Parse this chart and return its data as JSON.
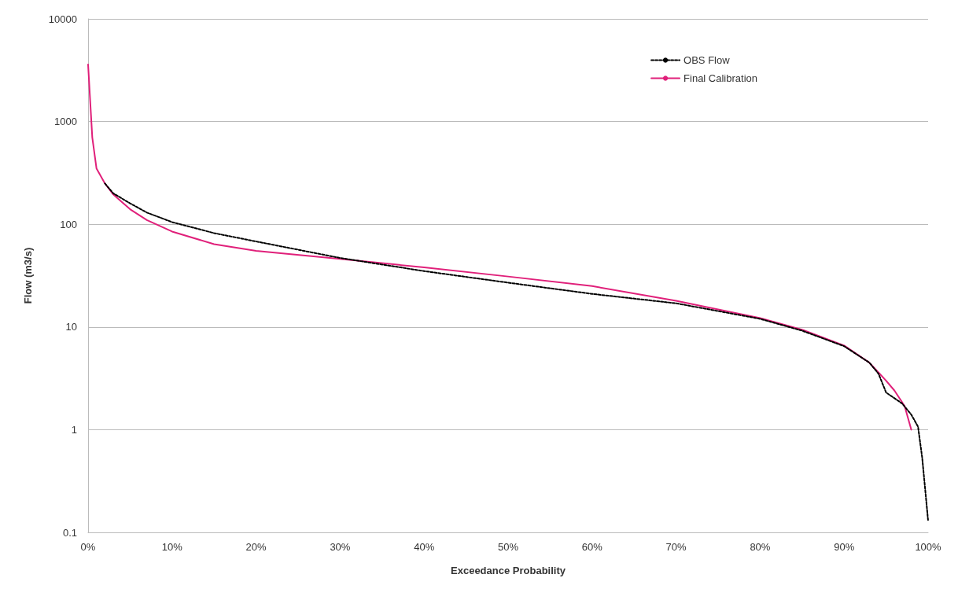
{
  "chart_data": {
    "type": "line",
    "xlabel": "Exceedance Probability",
    "ylabel": "Flow (m3/s)",
    "log": "y",
    "grid": "y",
    "legend": "top right",
    "marker": "none",
    "xlim": [
      0,
      100
    ],
    "xticks": [
      {
        "value": 0,
        "label": "0%"
      },
      {
        "value": 10,
        "label": "10%"
      },
      {
        "value": 20,
        "label": "20%"
      },
      {
        "value": 30,
        "label": "30%"
      },
      {
        "value": 40,
        "label": "40%"
      },
      {
        "value": 50,
        "label": "50%"
      },
      {
        "value": 60,
        "label": "60%"
      },
      {
        "value": 70,
        "label": "70%"
      },
      {
        "value": 80,
        "label": "80%"
      },
      {
        "value": 90,
        "label": "90%"
      },
      {
        "value": 100,
        "label": "100%"
      }
    ],
    "ylim": [
      0.1,
      10000
    ],
    "yticks": [
      0.1,
      1,
      10,
      100,
      1000,
      10000
    ],
    "series": [
      {
        "name": "OBS Flow",
        "color": "#000000",
        "line_style": "dashed",
        "x": [
          2,
          3,
          5,
          7,
          10,
          15,
          20,
          30,
          40,
          50,
          60,
          70,
          80,
          85,
          90,
          93,
          94.1,
          95,
          96.9,
          98,
          98.8,
          99.3,
          100
        ],
        "values": [
          250,
          200,
          160,
          130,
          105,
          82,
          68,
          47,
          35,
          27,
          21,
          17,
          12,
          9.2,
          6.5,
          4.5,
          3.5,
          2.3,
          1.8,
          1.4,
          1.07,
          0.53,
          0.13
        ]
      },
      {
        "name": "Final Calibration",
        "color": "#e0207a",
        "line_style": "solid",
        "x": [
          0,
          0.5,
          1,
          2,
          3,
          5,
          7,
          10,
          15,
          20,
          30,
          40,
          50,
          60,
          70,
          80,
          85,
          90,
          93,
          94.1,
          95,
          96,
          97.2,
          98
        ],
        "values": [
          3600,
          700,
          350,
          250,
          195,
          140,
          110,
          85,
          64,
          55,
          46,
          38,
          31,
          25,
          18,
          12.2,
          9.4,
          6.6,
          4.5,
          3.6,
          3,
          2.4,
          1.7,
          1
        ]
      }
    ]
  }
}
